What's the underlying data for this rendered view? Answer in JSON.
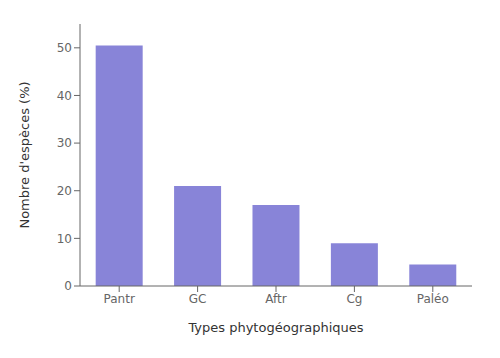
{
  "chart_data": {
    "type": "bar",
    "categories": [
      "Pantr",
      "GC",
      "Aftr",
      "Cg",
      "Paléo"
    ],
    "values": [
      50.5,
      21.0,
      17.0,
      9.0,
      4.5
    ],
    "xlabel": "Types phytogéographiques",
    "ylabel": "Nombre d'espèces (%)",
    "ylim": [
      0,
      55
    ],
    "yticks": [
      0,
      10,
      20,
      30,
      40,
      50
    ],
    "color": "#8884d8",
    "grid": false
  }
}
